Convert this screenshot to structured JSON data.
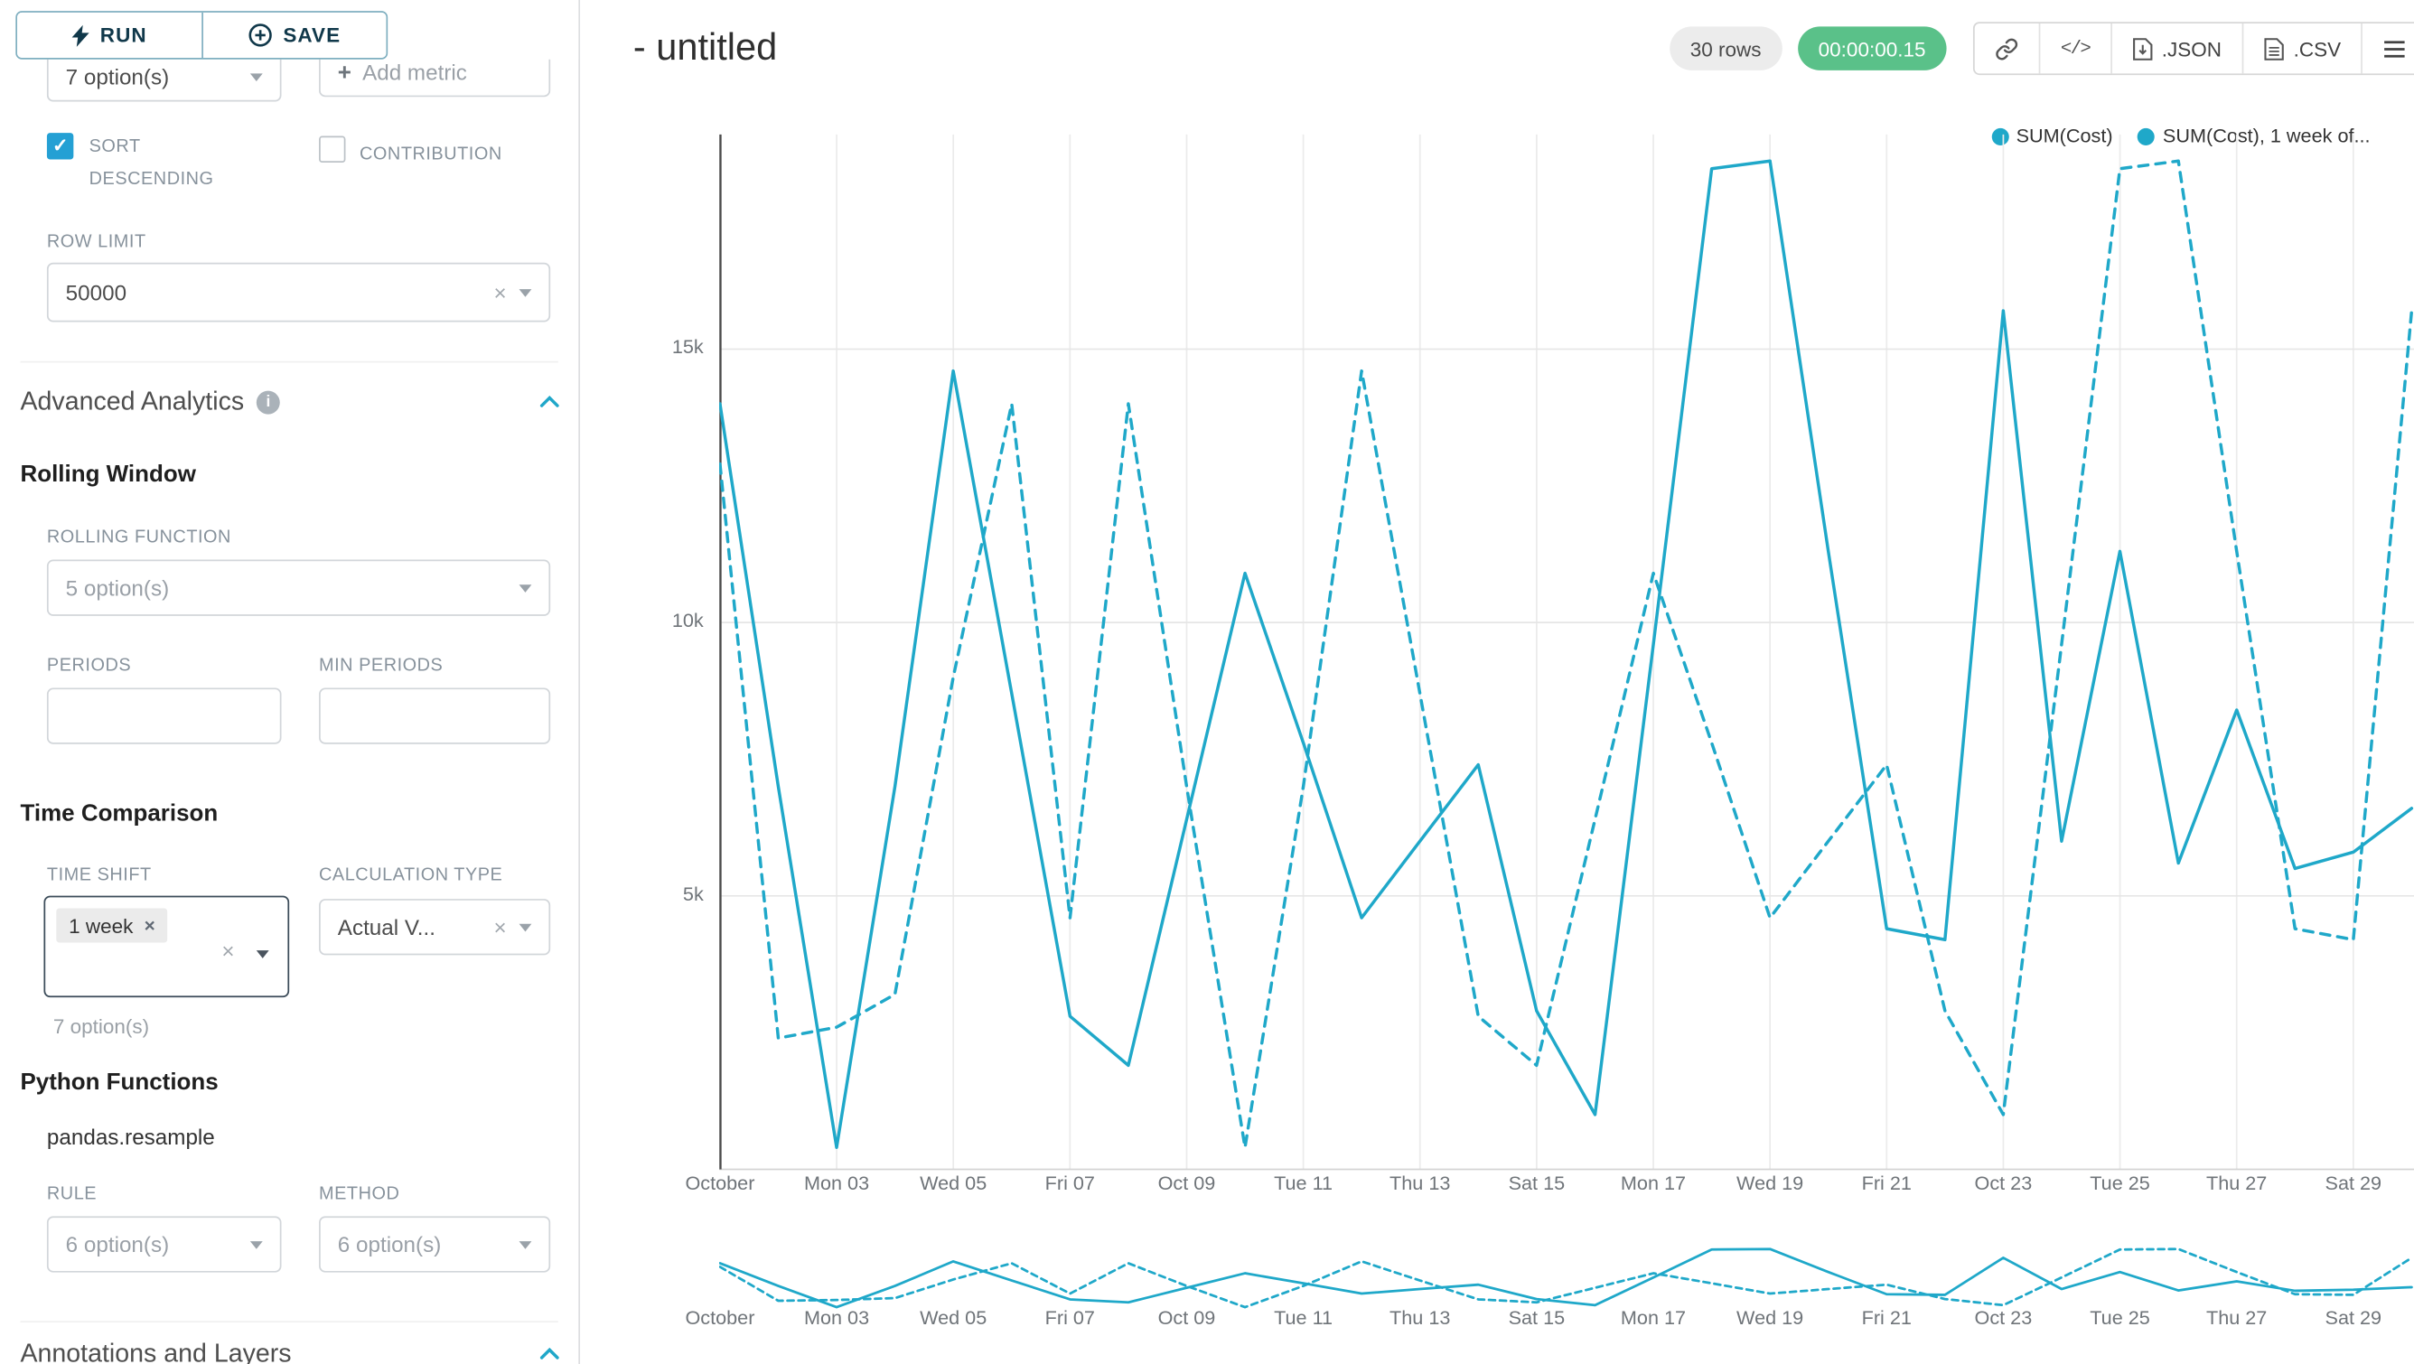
{
  "sidebar": {
    "run_label": "RUN",
    "save_label": "SAVE",
    "metrics_value": "7 option(s)",
    "add_metric_label": "Add metric",
    "sort_descending_label": "SORT DESCENDING",
    "contribution_label": "CONTRIBUTION",
    "row_limit_label": "ROW LIMIT",
    "row_limit_value": "50000",
    "advanced_analytics_title": "Advanced Analytics",
    "rolling_window_title": "Rolling Window",
    "rolling_function_label": "ROLLING FUNCTION",
    "rolling_function_value": "5 option(s)",
    "periods_label": "PERIODS",
    "min_periods_label": "MIN PERIODS",
    "time_comparison_title": "Time Comparison",
    "time_shift_label": "TIME SHIFT",
    "time_shift_tag": "1 week",
    "time_shift_hint": "7 option(s)",
    "calculation_type_label": "CALCULATION TYPE",
    "calculation_type_value": "Actual V...",
    "python_functions_title": "Python Functions",
    "python_functions_item": "pandas.resample",
    "rule_label": "RULE",
    "rule_value": "6 option(s)",
    "method_label": "METHOD",
    "method_value": "6 option(s)",
    "annotations_title": "Annotations and Layers"
  },
  "header": {
    "title": "- untitled",
    "rows_badge": "30 rows",
    "timer_badge": "00:00:00.15",
    "code_icon_label": "</>",
    "json_label": ".JSON",
    "csv_label": ".CSV"
  },
  "chart_data": {
    "type": "line",
    "x_unit": "day",
    "x_tick_labels": [
      "October",
      "Mon 03",
      "Wed 05",
      "Fri 07",
      "Oct 09",
      "Tue 11",
      "Thu 13",
      "Sat 15",
      "Mon 17",
      "Wed 19",
      "Fri 21",
      "Oct 23",
      "Tue 25",
      "Thu 27",
      "Sat 29"
    ],
    "y_tick_labels": [
      "5k",
      "10k",
      "15k"
    ],
    "y_tick_values": [
      5000,
      10000,
      15000
    ],
    "y_range": [
      0,
      18860
    ],
    "grid": true,
    "legend_position": "top-right",
    "color": "#1FA8C9",
    "series": [
      {
        "name": "SUM(Cost)",
        "legend": "SUM(Cost)",
        "line_style": "solid",
        "values": [
          14000,
          7000,
          400,
          7000,
          14600,
          8700,
          2800,
          1900,
          6400,
          10900,
          7800,
          4600,
          6000,
          7400,
          2900,
          1000,
          9600,
          18300,
          18440,
          11300,
          4400,
          4200,
          15700,
          6000,
          11300,
          5600,
          8400,
          5500,
          5800,
          6600
        ]
      },
      {
        "name": "SUM(Cost), 1 week offset",
        "legend": "SUM(Cost), 1 week of...",
        "line_style": "dashed",
        "values": [
          12900,
          2400,
          2600,
          3200,
          9000,
          14000,
          4600,
          14000,
          7000,
          400,
          7000,
          14600,
          8700,
          2800,
          1900,
          6400,
          10900,
          7800,
          4600,
          6000,
          7400,
          2900,
          1000,
          9600,
          18300,
          18440,
          11300,
          4400,
          4200,
          15700
        ]
      }
    ]
  }
}
